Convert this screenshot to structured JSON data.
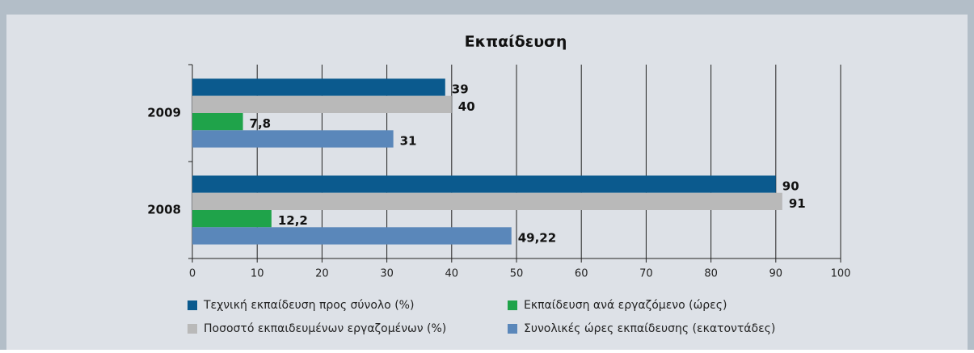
{
  "chart_data": {
    "type": "hbar",
    "title": "Εκπαίδευση",
    "categories": [
      "2009",
      "2008"
    ],
    "series": [
      {
        "name": "Τεχνική εκπαίδευση προς σύνολο (%)",
        "color": "#0b5a8e",
        "values": [
          39,
          90
        ]
      },
      {
        "name": "Ποσοστό εκπαιδευμένων εργαζομένων (%)",
        "color": "#b9b9b9",
        "values": [
          40,
          91
        ]
      },
      {
        "name": "Εκπαίδευση ανά εργαζόμενο (ώρες)",
        "color": "#1fa34a",
        "values": [
          7.8,
          12.2
        ],
        "value_labels": [
          "7,8",
          "12,2"
        ]
      },
      {
        "name": "Συνολικές ώρες εκπαίδευσης (εκατοντάδες)",
        "color": "#5a87ba",
        "values": [
          31,
          49.22
        ],
        "value_labels": [
          "31",
          "49,22"
        ]
      }
    ],
    "xlim": [
      0,
      100
    ],
    "xticks": [
      0,
      10,
      20,
      30,
      40,
      50,
      60,
      70,
      80,
      90,
      100
    ],
    "grid": true
  }
}
